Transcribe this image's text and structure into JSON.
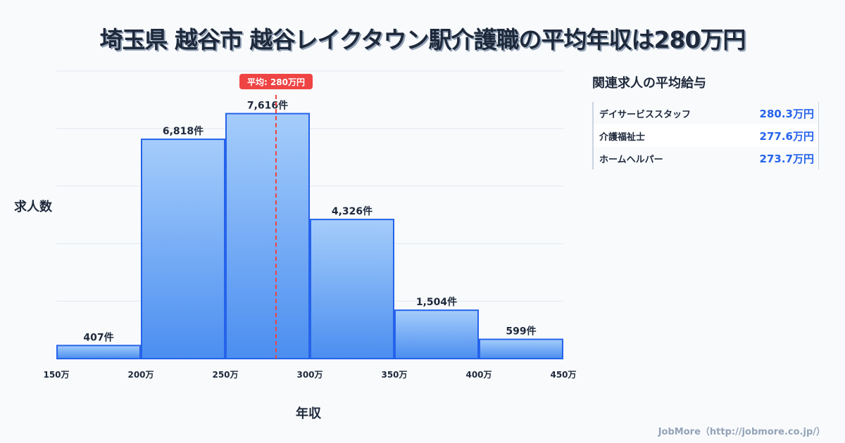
{
  "title": "埼玉県 越谷市 越谷レイクタウン駅介護職の平均年収は280万円",
  "chart_data": {
    "type": "bar",
    "categories": [
      "150-200万",
      "200-250万",
      "250-300万",
      "300-350万",
      "350-400万",
      "400-450万"
    ],
    "bin_edges": [
      150,
      200,
      250,
      300,
      350,
      400,
      450
    ],
    "values": [
      407,
      6818,
      7616,
      4326,
      1504,
      599
    ],
    "value_labels": [
      "407件",
      "6,818件",
      "7,616件",
      "4,326件",
      "1,504件",
      "599件"
    ],
    "x_tick_labels": [
      "150万",
      "200万",
      "250万",
      "300万",
      "350万",
      "400万",
      "450万"
    ],
    "xlabel": "年収",
    "ylabel": "求人数",
    "xlim": [
      150,
      450
    ],
    "ylim": [
      0,
      8940
    ],
    "grid": true,
    "mean": 280,
    "mean_label": "平均: 280万円",
    "colors": {
      "bar_top": "#a5cdfb",
      "bar_bottom": "#4b8ef0",
      "bar_stroke": "#2563eb",
      "mean": "#ef4444"
    }
  },
  "side": {
    "title": "関連求人の平均給与",
    "rows": [
      {
        "name": "デイサービススタッフ",
        "value": "280.3万円"
      },
      {
        "name": "介護福祉士",
        "value": "277.6万円"
      },
      {
        "name": "ホームヘルパー",
        "value": "273.7万円"
      }
    ]
  },
  "credit": "JobMore（http://jobmore.co.jp/）"
}
